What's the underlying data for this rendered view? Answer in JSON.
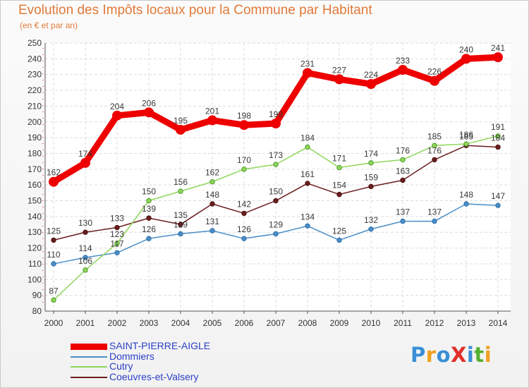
{
  "header": {
    "title": "Evolution des Impôts locaux pour la Commune par Habitant",
    "subtitle": "(en € et par an)"
  },
  "logo": {
    "text": "ProXiti",
    "colors": [
      "#3a8fd6",
      "#f0a020",
      "#3a8fd6",
      "#e0302a",
      "#3a8fd6",
      "#55b030",
      "#f0a020"
    ]
  },
  "chart_data": {
    "type": "line",
    "x": [
      "2000",
      "2001",
      "2002",
      "2003",
      "2004",
      "2005",
      "2006",
      "2007",
      "2008",
      "2009",
      "2010",
      "2011",
      "2012",
      "2013",
      "2014"
    ],
    "ylim": [
      80,
      250
    ],
    "yticks": [
      80,
      90,
      100,
      110,
      120,
      130,
      140,
      150,
      160,
      170,
      180,
      190,
      200,
      210,
      220,
      230,
      240,
      250
    ],
    "grid": true,
    "legend_position": "bottom-left",
    "series": [
      {
        "name": "SAINT-PIERRE-AIGLE",
        "color": "#ee0000",
        "values": [
          162,
          174,
          204,
          206,
          195,
          201,
          198,
          199,
          231,
          227,
          224,
          233,
          226,
          240,
          241
        ]
      },
      {
        "name": "Dommiers",
        "color": "#4a8ec8",
        "values": [
          110,
          114,
          117,
          126,
          129,
          131,
          126,
          129,
          134,
          125,
          132,
          137,
          137,
          148,
          147
        ]
      },
      {
        "name": "Cutry",
        "color": "#8ed65a",
        "values": [
          87,
          106,
          123,
          150,
          156,
          162,
          170,
          173,
          184,
          171,
          174,
          176,
          185,
          186,
          191
        ]
      },
      {
        "name": "Coeuvres-et-Valsery",
        "color": "#6b1e1e",
        "values": [
          125,
          130,
          133,
          139,
          135,
          148,
          142,
          150,
          161,
          154,
          159,
          163,
          176,
          185,
          184
        ]
      }
    ]
  }
}
